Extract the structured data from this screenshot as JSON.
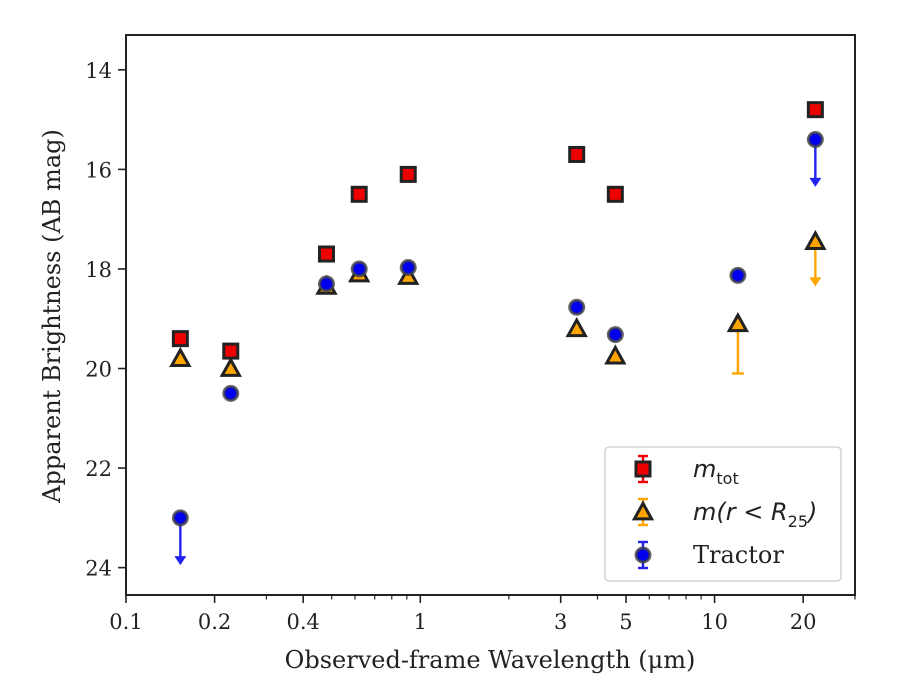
{
  "chart_data": {
    "type": "scatter",
    "xlabel": "Observed-frame Wavelength (μm)",
    "ylabel": "Apparent Brightness (AB mag)",
    "x_scale": "log",
    "xlim": [
      0.1,
      30
    ],
    "ylim": [
      24.55,
      13.3
    ],
    "y_inverted": true,
    "grid": false,
    "legend_position": "lower-right",
    "x_ticks": [
      {
        "value": 0.1,
        "label": "0.1"
      },
      {
        "value": 0.2,
        "label": "0.2"
      },
      {
        "value": 0.4,
        "label": "0.4"
      },
      {
        "value": 1,
        "label": "1"
      },
      {
        "value": 3,
        "label": "3"
      },
      {
        "value": 5,
        "label": "5"
      },
      {
        "value": 10,
        "label": "10"
      },
      {
        "value": 20,
        "label": "20"
      }
    ],
    "y_ticks": [
      {
        "value": 14,
        "label": "14"
      },
      {
        "value": 16,
        "label": "16"
      },
      {
        "value": 18,
        "label": "18"
      },
      {
        "value": 20,
        "label": "20"
      },
      {
        "value": 22,
        "label": "22"
      },
      {
        "value": 24,
        "label": "24"
      }
    ],
    "series": [
      {
        "name": "m_tot",
        "legend_main": "m",
        "legend_sub": "tot",
        "marker": "square",
        "color": "#ee0000",
        "errcolor": "#ee0000",
        "points": [
          {
            "x": 0.153,
            "y": 19.4
          },
          {
            "x": 0.227,
            "y": 19.65
          },
          {
            "x": 0.48,
            "y": 17.7
          },
          {
            "x": 0.62,
            "y": 16.5
          },
          {
            "x": 0.91,
            "y": 16.1
          },
          {
            "x": 3.4,
            "y": 15.7
          },
          {
            "x": 4.6,
            "y": 16.5
          },
          {
            "x": 22,
            "y": 14.8
          }
        ]
      },
      {
        "name": "m(r < R25)",
        "legend_main": "m(r < R",
        "legend_sub": "25",
        "legend_end": ")",
        "marker": "triangle",
        "color": "#ffa500",
        "errcolor": "#ffa500",
        "points": [
          {
            "x": 0.153,
            "y": 19.8
          },
          {
            "x": 0.227,
            "y": 20.0
          },
          {
            "x": 0.48,
            "y": 18.35
          },
          {
            "x": 0.62,
            "y": 18.1
          },
          {
            "x": 0.91,
            "y": 18.15
          },
          {
            "x": 3.4,
            "y": 19.2
          },
          {
            "x": 4.6,
            "y": 19.75
          },
          {
            "x": 12,
            "y": 19.1,
            "err_low": 20.1
          },
          {
            "x": 22,
            "y": 17.45,
            "upper_limit_to": 18.35
          }
        ]
      },
      {
        "name": "Tractor",
        "legend_main": "Tractor",
        "marker": "circle",
        "color": "#0000ee",
        "errcolor": "#2222ee",
        "points": [
          {
            "x": 0.153,
            "y": 23.0,
            "upper_limit_to": 23.95
          },
          {
            "x": 0.227,
            "y": 20.5
          },
          {
            "x": 0.48,
            "y": 18.3
          },
          {
            "x": 0.62,
            "y": 18.0
          },
          {
            "x": 0.91,
            "y": 17.97
          },
          {
            "x": 3.4,
            "y": 18.77
          },
          {
            "x": 4.6,
            "y": 19.32
          },
          {
            "x": 12,
            "y": 18.13
          },
          {
            "x": 22,
            "y": 15.4,
            "upper_limit_to": 16.35
          }
        ]
      }
    ]
  }
}
